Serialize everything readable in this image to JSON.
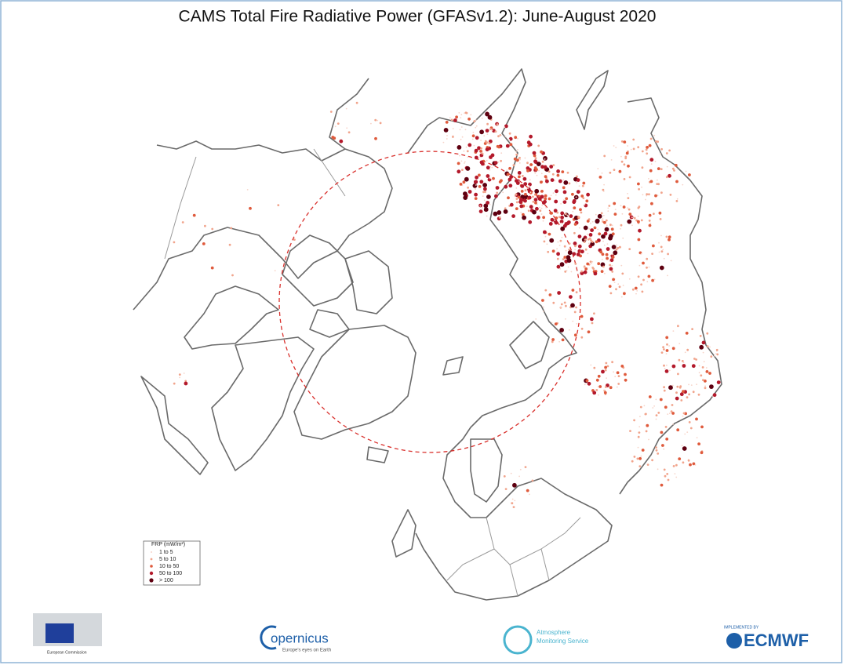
{
  "title": "CAMS Total Fire Radiative Power (GFASv1.2): June-August 2020",
  "legend": {
    "title": "FRP (mW/m²)",
    "items": [
      {
        "label": "1 to  5",
        "color": "#f7d4c9"
      },
      {
        "label": "5 to  10",
        "color": "#f1a48c"
      },
      {
        "label": "10 to  50",
        "color": "#df5a3c"
      },
      {
        "label": "50 to 100",
        "color": "#b3192b"
      },
      {
        "label": "> 100",
        "color": "#5e0010"
      }
    ]
  },
  "logos": {
    "ec": "European Commission",
    "copernicus": "opernicus",
    "copernicus_tagline": "Europe's eyes on Earth",
    "cams_line1": "Atmosphere",
    "cams_line2": "Monitoring Service",
    "ecmwf_top": "IMPLEMENTED BY",
    "ecmwf": "ECMWF"
  }
}
